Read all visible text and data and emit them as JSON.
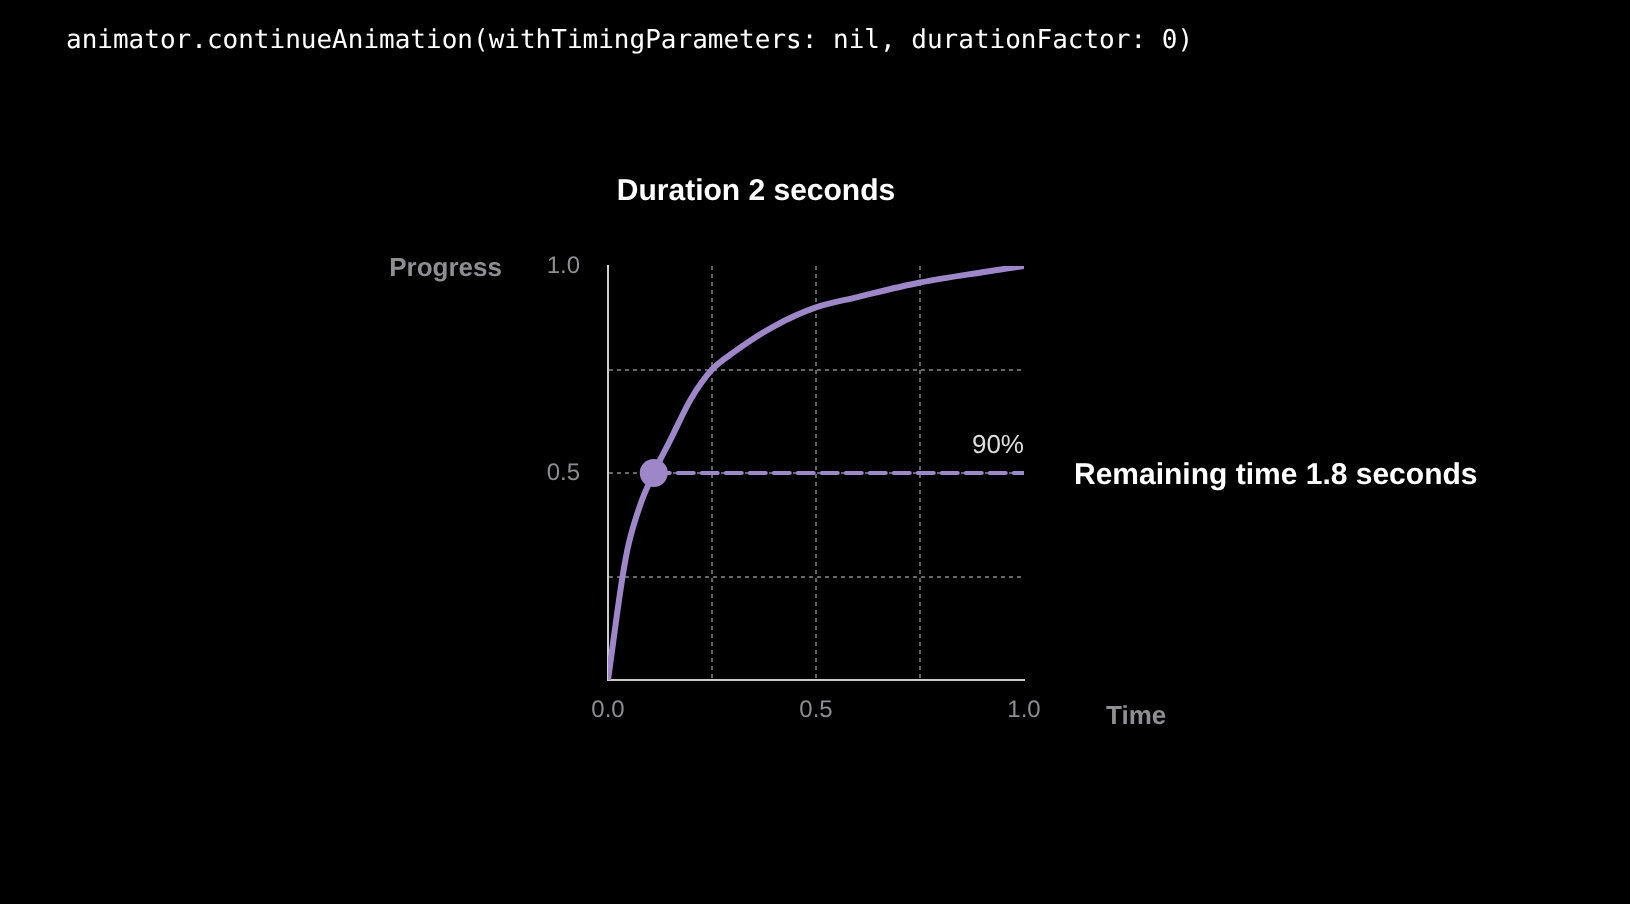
{
  "chart_data": {
    "type": "line",
    "title": "Duration 2 seconds",
    "xlabel": "Time",
    "ylabel": "Progress",
    "xlim": [
      0,
      1
    ],
    "ylim": [
      0,
      1
    ],
    "xticks": [
      {
        "value": 0,
        "label": "0.0"
      },
      {
        "value": 0.25,
        "label": null
      },
      {
        "value": 0.5,
        "label": "0.5"
      },
      {
        "value": 0.75,
        "label": null
      },
      {
        "value": 1,
        "label": "1.0"
      }
    ],
    "yticks": [
      {
        "value": 0,
        "label": null
      },
      {
        "value": 0.25,
        "label": null
      },
      {
        "value": 0.5,
        "label": "0.5"
      },
      {
        "value": 0.75,
        "label": null
      },
      {
        "value": 1,
        "label": "1.0"
      }
    ],
    "grid": true,
    "legend": false,
    "marker": "none",
    "series": [
      {
        "color": "#9d87c9",
        "line_style": "solid",
        "x": [
          0,
          0.035,
          0.05,
          0.08,
          0.11,
          0.15,
          0.2,
          0.25,
          0.3,
          0.4,
          0.5,
          0.6,
          0.75,
          0.9,
          1
        ],
        "values": [
          0,
          0.25,
          0.33,
          0.43,
          0.5,
          0.58,
          0.68,
          0.75,
          0.79,
          0.855,
          0.9,
          0.925,
          0.96,
          0.985,
          1
        ]
      },
      {
        "type": "line",
        "color": "#9d87c9",
        "line_style": "dashed",
        "x": [
          0.11,
          1
        ],
        "values": [
          0.5,
          0.5
        ]
      },
      {
        "type": "scatter",
        "color": "#9d87c9",
        "marker": "circle",
        "x": [
          0.11
        ],
        "values": [
          0.5
        ]
      }
    ],
    "annotations": [
      "animator.continueAnimation(withTimingParameters: nil, durationFactor: 0)",
      {
        "text": "90%",
        "x": 1,
        "y": 0.5
      },
      "Remaining time 1.8 seconds"
    ]
  }
}
